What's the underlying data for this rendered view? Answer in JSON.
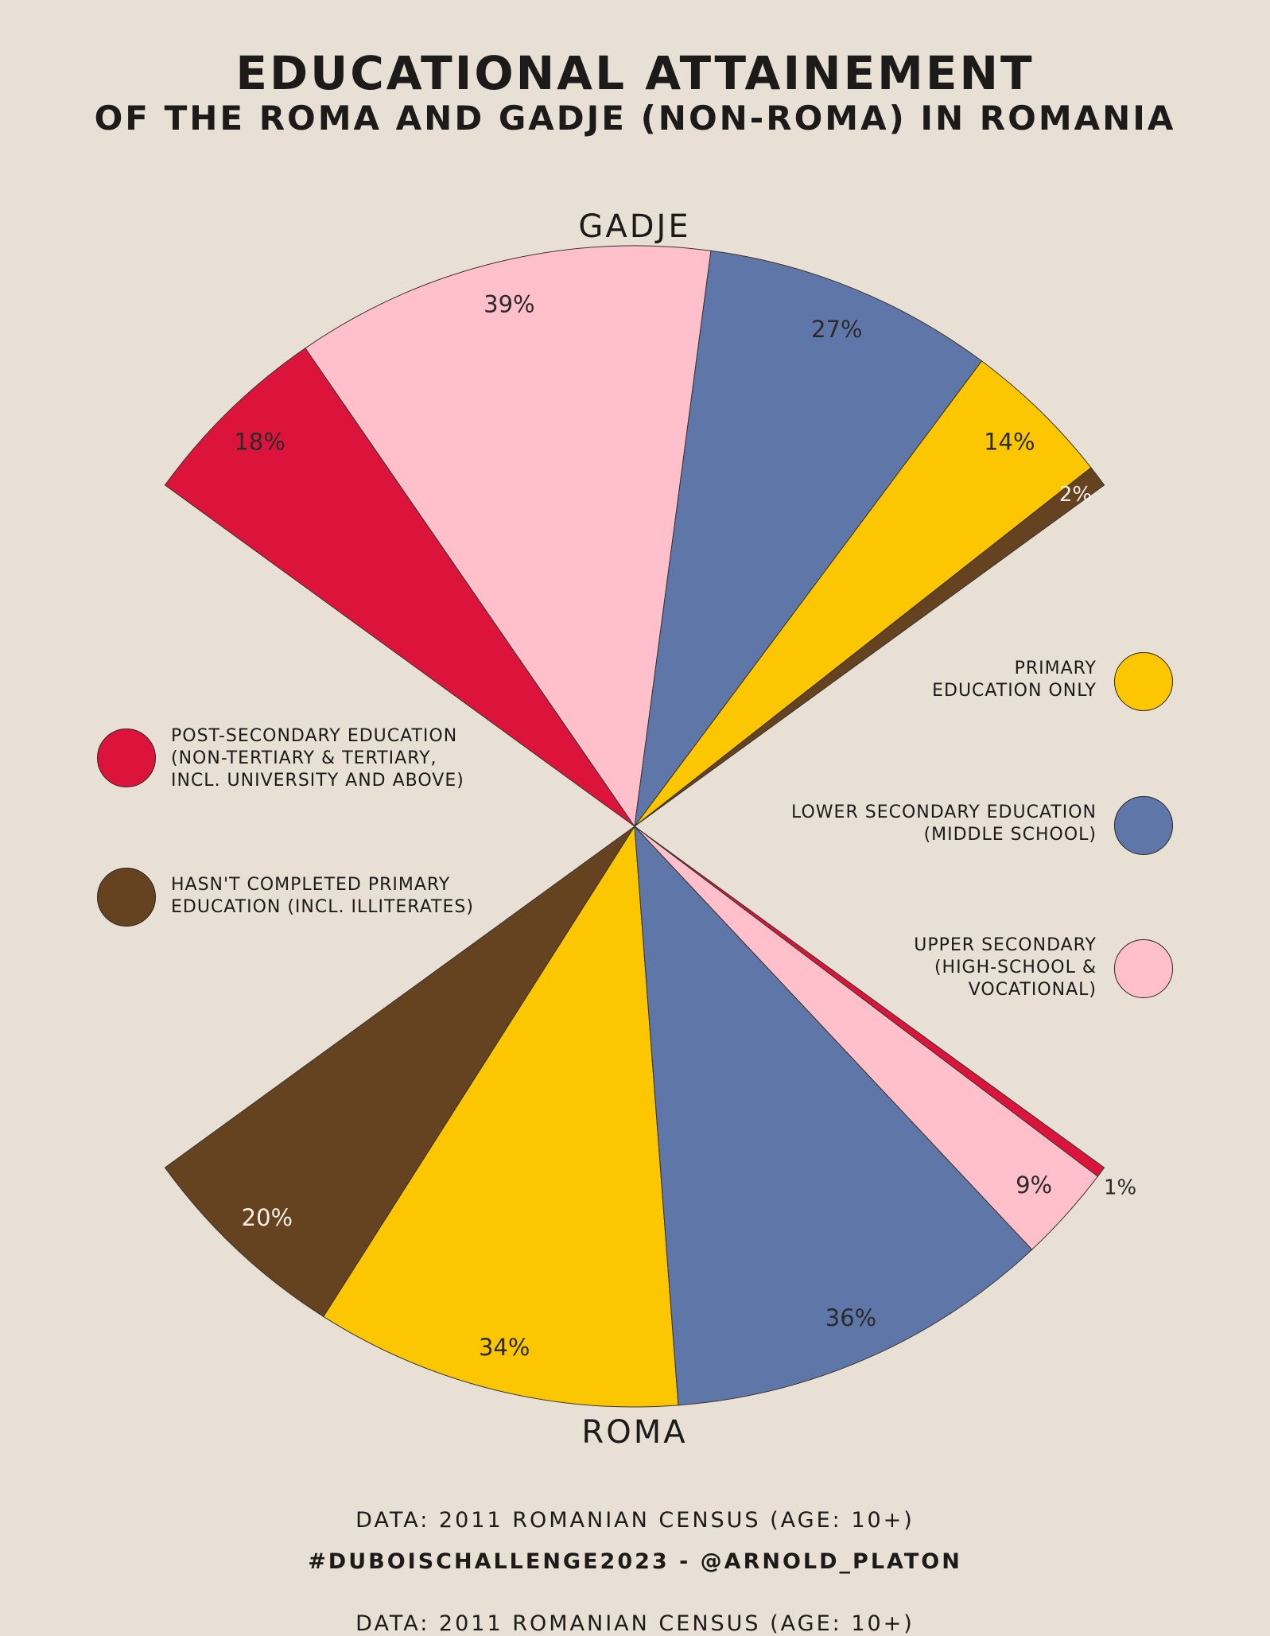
{
  "header": {
    "title": "EDUCATIONAL ATTAINEMENT",
    "subtitle": "OF THE ROMA AND GADJE (NON-ROMA) IN ROMANIA"
  },
  "colors": {
    "background": "#e8dfd5",
    "post_secondary": "#dc143c",
    "upper_secondary": "#ffc0cb",
    "lower_secondary": "#5e77a8",
    "primary": "#fcc600",
    "not_completed_primary": "#654321"
  },
  "legend": {
    "post_secondary": [
      "POST-SECONDARY EDUCATION",
      "(NON-TERTIARY & TERTIARY,",
      "INCL. UNIVERSITY AND ABOVE)"
    ],
    "not_completed_primary": [
      "HASN'T COMPLETED PRIMARY",
      "EDUCATION (INCL. ILLITERATES)"
    ],
    "primary": [
      "PRIMARY",
      "EDUCATION ONLY"
    ],
    "lower_secondary": [
      "LOWER SECONDARY EDUCATION",
      "(MIDDLE SCHOOL)"
    ],
    "upper_secondary": [
      "UPPER SECONDARY",
      "(HIGH-SCHOOL &",
      "VOCATIONAL)"
    ]
  },
  "chart_data": {
    "type": "pie",
    "chart_style": "Du Bois split fan: two half-fans sharing a center, Gadje on top, Roma on bottom",
    "groups": [
      {
        "name": "GADJE",
        "position": "top",
        "slices": [
          {
            "category": "post_secondary",
            "value": 18,
            "label": "18%"
          },
          {
            "category": "upper_secondary",
            "value": 39,
            "label": "39%"
          },
          {
            "category": "lower_secondary",
            "value": 27,
            "label": "27%"
          },
          {
            "category": "primary",
            "value": 14,
            "label": "14%"
          },
          {
            "category": "not_completed_primary",
            "value": 2,
            "label": "2%"
          }
        ]
      },
      {
        "name": "ROMA",
        "position": "bottom",
        "slices": [
          {
            "category": "not_completed_primary",
            "value": 20,
            "label": "20%"
          },
          {
            "category": "primary",
            "value": 34,
            "label": "34%"
          },
          {
            "category": "lower_secondary",
            "value": 36,
            "label": "36%"
          },
          {
            "category": "upper_secondary",
            "value": 9,
            "label": "9%"
          },
          {
            "category": "post_secondary",
            "value": 1,
            "label": "1%"
          }
        ]
      }
    ]
  },
  "footer": {
    "source": "DATA: 2011 ROMANIAN CENSUS (AGE: 10+)",
    "credit": "#DUBOISCHALLENGE2023 - @ARNOLD_PLATON",
    "ghost": "DATA: 2011 ROMANIAN CENSUS (AGE: 10+)"
  }
}
